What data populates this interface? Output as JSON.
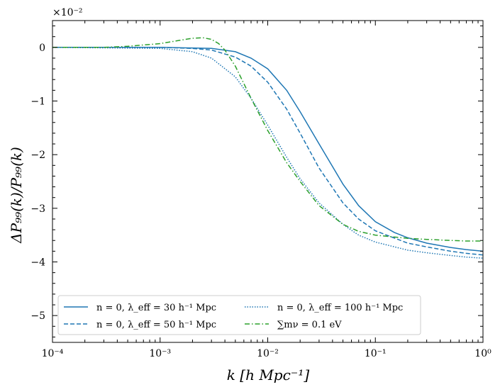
{
  "chart_data": {
    "type": "line",
    "title": "",
    "xlabel": "k [h Mpc⁻¹]",
    "ylabel": "ΔP₉₉(k)/P₉₉(k)",
    "xscale": "log",
    "xlim": [
      0.0001,
      1
    ],
    "ylim": [
      -5.5,
      0.5
    ],
    "y_multiplier": "×10⁻²",
    "x_ticks": [
      0.0001,
      0.001,
      0.01,
      0.1,
      1
    ],
    "x_tick_labels": [
      "10⁻⁴",
      "10⁻³",
      "10⁻²",
      "10⁻¹",
      "10⁰"
    ],
    "y_ticks": [
      0,
      -1,
      -2,
      -3,
      -4,
      -5
    ],
    "y_tick_labels": [
      "0",
      "−1",
      "−2",
      "−3",
      "−4",
      "−5"
    ],
    "legend_position": "lower-left",
    "series": [
      {
        "name": "n = 0, λ_eff = 30 h⁻¹ Mpc",
        "style": "solid",
        "color": "#1f77b4",
        "x": [
          0.0001,
          0.001,
          0.003,
          0.005,
          0.007,
          0.01,
          0.015,
          0.02,
          0.03,
          0.05,
          0.07,
          0.1,
          0.15,
          0.2,
          0.3,
          0.5,
          0.7,
          1
        ],
        "y": [
          0,
          0,
          -0.02,
          -0.08,
          -0.2,
          -0.4,
          -0.8,
          -1.2,
          -1.8,
          -2.55,
          -2.95,
          -3.25,
          -3.45,
          -3.55,
          -3.65,
          -3.73,
          -3.77,
          -3.8
        ]
      },
      {
        "name": "n = 0, λ_eff = 50 h⁻¹ Mpc",
        "style": "dashed",
        "color": "#1f77b4",
        "x": [
          0.0001,
          0.001,
          0.002,
          0.003,
          0.005,
          0.007,
          0.01,
          0.015,
          0.02,
          0.03,
          0.05,
          0.07,
          0.1,
          0.2,
          0.3,
          0.5,
          0.7,
          1
        ],
        "y": [
          0,
          0,
          -0.02,
          -0.05,
          -0.18,
          -0.35,
          -0.65,
          -1.15,
          -1.6,
          -2.25,
          -2.9,
          -3.2,
          -3.42,
          -3.65,
          -3.72,
          -3.8,
          -3.84,
          -3.87
        ]
      },
      {
        "name": "n = 0, λ_eff = 100 h⁻¹ Mpc",
        "style": "dotted",
        "color": "#1f77b4",
        "x": [
          0.0001,
          0.001,
          0.002,
          0.003,
          0.005,
          0.007,
          0.01,
          0.015,
          0.02,
          0.03,
          0.05,
          0.07,
          0.1,
          0.2,
          0.3,
          0.5,
          0.7,
          1
        ],
        "y": [
          0,
          -0.02,
          -0.08,
          -0.2,
          -0.55,
          -0.95,
          -1.45,
          -2.05,
          -2.45,
          -2.9,
          -3.3,
          -3.5,
          -3.63,
          -3.78,
          -3.83,
          -3.88,
          -3.91,
          -3.93
        ]
      },
      {
        "name": "∑mν = 0.1 eV",
        "style": "dashdot",
        "color": "#2ca02c",
        "x": [
          0.0001,
          0.0003,
          0.0005,
          0.001,
          0.0015,
          0.002,
          0.0025,
          0.003,
          0.0035,
          0.004,
          0.005,
          0.007,
          0.01,
          0.015,
          0.02,
          0.03,
          0.05,
          0.07,
          0.1,
          0.2,
          0.3,
          0.5,
          0.7,
          1
        ],
        "y": [
          0,
          0,
          0.02,
          0.07,
          0.13,
          0.17,
          0.18,
          0.15,
          0.07,
          -0.05,
          -0.35,
          -0.95,
          -1.55,
          -2.15,
          -2.5,
          -2.95,
          -3.3,
          -3.43,
          -3.5,
          -3.56,
          -3.58,
          -3.6,
          -3.61,
          -3.61
        ]
      }
    ]
  }
}
